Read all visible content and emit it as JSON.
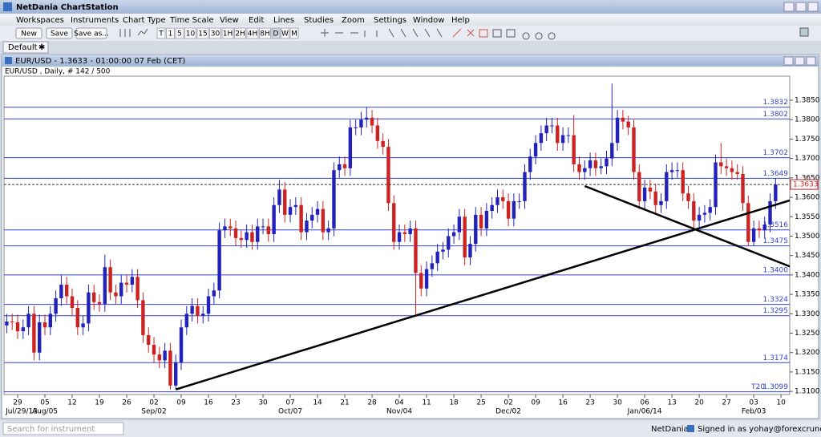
{
  "app": {
    "title": "NetDania ChartStation",
    "menu": [
      "Workspaces",
      "Instruments",
      "Chart Type",
      "Time Scale",
      "View",
      "Edit",
      "Lines",
      "Studies",
      "Zoom",
      "Settings",
      "Window",
      "Help"
    ],
    "buttons": [
      "New",
      "Save",
      "Save as..."
    ],
    "timeframes": [
      "T",
      "1",
      "5",
      "10",
      "15",
      "30",
      "1H",
      "2H",
      "4H",
      "8H",
      "D",
      "W",
      "M"
    ],
    "tab": "Default",
    "window_title": "EUR/USD - 1.3633 - 01:00:00  07 Feb (CET)",
    "info": "EUR/USD , Daily, # 142 / 500",
    "search": "Search for instrument",
    "status_brand": "NetDania",
    "status_user": "Signed in as yohay@forexcrunch.com"
  },
  "chart_data": {
    "type": "candlestick",
    "up_color": "#2222bb",
    "down_color": "#cc2222",
    "level_color": "#3344cc",
    "trend_color": "#000000",
    "xlim": [
      -0.5,
      143.6
    ],
    "ylim": [
      1.3092,
      1.3912
    ],
    "yticks": [
      {
        "value": 1.31,
        "label": "1.3100"
      },
      {
        "value": 1.315,
        "label": "1.3150"
      },
      {
        "value": 1.32,
        "label": "1.3200"
      },
      {
        "value": 1.325,
        "label": "1.3250"
      },
      {
        "value": 1.33,
        "label": "1.3300"
      },
      {
        "value": 1.335,
        "label": "1.3350"
      },
      {
        "value": 1.34,
        "label": "1.3400"
      },
      {
        "value": 1.345,
        "label": "1.3450"
      },
      {
        "value": 1.35,
        "label": "1.3500"
      },
      {
        "value": 1.355,
        "label": "1.3550"
      },
      {
        "value": 1.36,
        "label": "1.3600"
      },
      {
        "value": 1.365,
        "label": "1.3650"
      },
      {
        "value": 1.37,
        "label": "1.3700"
      },
      {
        "value": 1.375,
        "label": "1.3750"
      },
      {
        "value": 1.38,
        "label": "1.3800"
      },
      {
        "value": 1.385,
        "label": "1.3850"
      }
    ],
    "xticks": [
      {
        "value": 2,
        "label": "29"
      },
      {
        "value": 7,
        "label": "05"
      },
      {
        "value": 12,
        "label": "12"
      },
      {
        "value": 17,
        "label": "19"
      },
      {
        "value": 22,
        "label": "26"
      },
      {
        "value": 27,
        "label": "02"
      },
      {
        "value": 32,
        "label": "09"
      },
      {
        "value": 37,
        "label": "16"
      },
      {
        "value": 42,
        "label": "23"
      },
      {
        "value": 47,
        "label": "30"
      },
      {
        "value": 52,
        "label": "07"
      },
      {
        "value": 57,
        "label": "14"
      },
      {
        "value": 62,
        "label": "21"
      },
      {
        "value": 67,
        "label": "28"
      },
      {
        "value": 72,
        "label": "04"
      },
      {
        "value": 77,
        "label": "11"
      },
      {
        "value": 82,
        "label": "18"
      },
      {
        "value": 87,
        "label": "25"
      },
      {
        "value": 92,
        "label": "02"
      },
      {
        "value": 97,
        "label": "09"
      },
      {
        "value": 102,
        "label": "16"
      },
      {
        "value": 107,
        "label": "23"
      },
      {
        "value": 112,
        "label": "30"
      },
      {
        "value": 117,
        "label": "06"
      },
      {
        "value": 122,
        "label": "13"
      },
      {
        "value": 127,
        "label": "20"
      },
      {
        "value": 132,
        "label": "27"
      },
      {
        "value": 137,
        "label": "03"
      },
      {
        "value": 142,
        "label": "10"
      }
    ],
    "xticks2": [
      {
        "value": 2,
        "label": "Jul/29/13"
      },
      {
        "value": 7,
        "label": "Aug/05"
      },
      {
        "value": 27,
        "label": "Sep/02"
      },
      {
        "value": 52,
        "label": "Oct/07"
      },
      {
        "value": 72,
        "label": "Nov/04"
      },
      {
        "value": 92,
        "label": "Dec/02"
      },
      {
        "value": 117,
        "label": "Jan/06/14"
      },
      {
        "value": 137,
        "label": "Feb/03"
      }
    ],
    "levels": [
      {
        "value": 1.3832,
        "label": "1.3832"
      },
      {
        "value": 1.3802,
        "label": "1.3802"
      },
      {
        "value": 1.3702,
        "label": "1.3702"
      },
      {
        "value": 1.3649,
        "label": "1.3649"
      },
      {
        "value": 1.3516,
        "label": "1.3516"
      },
      {
        "value": 1.3475,
        "label": "1.3475"
      },
      {
        "value": 1.34,
        "label": "1.3400"
      },
      {
        "value": 1.3324,
        "label": "1.3324"
      },
      {
        "value": 1.3295,
        "label": "1.3295"
      },
      {
        "value": 1.3174,
        "label": "1.3174"
      },
      {
        "value": 1.3099,
        "label": "1.3099"
      }
    ],
    "level_note": "T20",
    "last": {
      "value": 1.3633,
      "label": "1.3633"
    },
    "trendlines": [
      {
        "from": [
          31,
          1.3105
        ],
        "to": [
          143.6,
          1.3592
        ]
      },
      {
        "from": [
          106,
          1.3629
        ],
        "to": [
          143.6,
          1.3422
        ]
      }
    ],
    "ohlc": [
      [
        1.327,
        1.33,
        1.325,
        1.328
      ],
      [
        1.328,
        1.33,
        1.3258,
        1.3278
      ],
      [
        1.3278,
        1.3298,
        1.3235,
        1.3255
      ],
      [
        1.3255,
        1.3285,
        1.3235,
        1.3265
      ],
      [
        1.3265,
        1.332,
        1.3245,
        1.33
      ],
      [
        1.33,
        1.332,
        1.318,
        1.32
      ],
      [
        1.32,
        1.3298,
        1.318,
        1.3278
      ],
      [
        1.3278,
        1.3298,
        1.3245,
        1.3265
      ],
      [
        1.3265,
        1.332,
        1.3245,
        1.33
      ],
      [
        1.33,
        1.336,
        1.328,
        1.334
      ],
      [
        1.334,
        1.34,
        1.332,
        1.3375
      ],
      [
        1.3375,
        1.3395,
        1.3325,
        1.3345
      ],
      [
        1.3345,
        1.3365,
        1.3295,
        1.3315
      ],
      [
        1.3315,
        1.3335,
        1.3245,
        1.3265
      ],
      [
        1.3265,
        1.3295,
        1.3245,
        1.3275
      ],
      [
        1.3275,
        1.3375,
        1.3255,
        1.3355
      ],
      [
        1.3355,
        1.3375,
        1.331,
        1.333
      ],
      [
        1.333,
        1.335,
        1.3305,
        1.3325
      ],
      [
        1.3325,
        1.3452,
        1.3305,
        1.342
      ],
      [
        1.342,
        1.344,
        1.3335,
        1.3355
      ],
      [
        1.3355,
        1.3375,
        1.3325,
        1.3345
      ],
      [
        1.3345,
        1.34,
        1.3325,
        1.338
      ],
      [
        1.338,
        1.34,
        1.3355,
        1.3375
      ],
      [
        1.3375,
        1.3415,
        1.3355,
        1.3395
      ],
      [
        1.3395,
        1.3415,
        1.3315,
        1.3335
      ],
      [
        1.3335,
        1.3355,
        1.3225,
        1.3245
      ],
      [
        1.3245,
        1.3265,
        1.32,
        1.322
      ],
      [
        1.322,
        1.324,
        1.3175,
        1.3195
      ],
      [
        1.3195,
        1.3215,
        1.316,
        1.318
      ],
      [
        1.318,
        1.3225,
        1.316,
        1.3205
      ],
      [
        1.3205,
        1.3225,
        1.3105,
        1.3115
      ],
      [
        1.3115,
        1.3195,
        1.3105,
        1.3175
      ],
      [
        1.3175,
        1.3285,
        1.3155,
        1.3265
      ],
      [
        1.3265,
        1.332,
        1.3245,
        1.33
      ],
      [
        1.33,
        1.334,
        1.328,
        1.332
      ],
      [
        1.332,
        1.334,
        1.3275,
        1.3295
      ],
      [
        1.3295,
        1.332,
        1.3275,
        1.33
      ],
      [
        1.33,
        1.3365,
        1.328,
        1.3345
      ],
      [
        1.3345,
        1.338,
        1.3325,
        1.336
      ],
      [
        1.336,
        1.3535,
        1.334,
        1.3515
      ],
      [
        1.3515,
        1.3545,
        1.3495,
        1.3525
      ],
      [
        1.3525,
        1.3545,
        1.35,
        1.352
      ],
      [
        1.352,
        1.354,
        1.3475,
        1.3495
      ],
      [
        1.3495,
        1.3515,
        1.347,
        1.349
      ],
      [
        1.349,
        1.353,
        1.347,
        1.351
      ],
      [
        1.351,
        1.353,
        1.3465,
        1.3485
      ],
      [
        1.3485,
        1.3545,
        1.3465,
        1.3525
      ],
      [
        1.3525,
        1.3545,
        1.3505,
        1.3525
      ],
      [
        1.3525,
        1.3545,
        1.3485,
        1.3505
      ],
      [
        1.3505,
        1.36,
        1.3485,
        1.358
      ],
      [
        1.358,
        1.3645,
        1.356,
        1.362
      ],
      [
        1.362,
        1.364,
        1.3535,
        1.3555
      ],
      [
        1.3555,
        1.3595,
        1.3535,
        1.3575
      ],
      [
        1.3575,
        1.36,
        1.3555,
        1.358
      ],
      [
        1.358,
        1.36,
        1.349,
        1.351
      ],
      [
        1.351,
        1.356,
        1.349,
        1.354
      ],
      [
        1.354,
        1.3575,
        1.352,
        1.3555
      ],
      [
        1.3555,
        1.359,
        1.3535,
        1.357
      ],
      [
        1.357,
        1.359,
        1.349,
        1.351
      ],
      [
        1.351,
        1.354,
        1.349,
        1.352
      ],
      [
        1.352,
        1.369,
        1.35,
        1.367
      ],
      [
        1.367,
        1.3705,
        1.365,
        1.3685
      ],
      [
        1.3685,
        1.3705,
        1.3655,
        1.3675
      ],
      [
        1.3675,
        1.38,
        1.3655,
        1.378
      ],
      [
        1.378,
        1.38,
        1.376,
        1.378
      ],
      [
        1.378,
        1.382,
        1.376,
        1.38
      ],
      [
        1.38,
        1.3832,
        1.378,
        1.3805
      ],
      [
        1.3805,
        1.3825,
        1.3765,
        1.3785
      ],
      [
        1.3785,
        1.3805,
        1.3725,
        1.3745
      ],
      [
        1.3745,
        1.3765,
        1.371,
        1.373
      ],
      [
        1.373,
        1.375,
        1.3565,
        1.3585
      ],
      [
        1.3585,
        1.3605,
        1.3465,
        1.3485
      ],
      [
        1.3485,
        1.353,
        1.3465,
        1.351
      ],
      [
        1.351,
        1.353,
        1.3485,
        1.3505
      ],
      [
        1.3505,
        1.354,
        1.3485,
        1.352
      ],
      [
        1.352,
        1.354,
        1.3295,
        1.3405
      ],
      [
        1.3405,
        1.3425,
        1.3345,
        1.3365
      ],
      [
        1.3365,
        1.3435,
        1.3345,
        1.3415
      ],
      [
        1.3415,
        1.345,
        1.3395,
        1.343
      ],
      [
        1.343,
        1.348,
        1.341,
        1.346
      ],
      [
        1.346,
        1.3485,
        1.344,
        1.3465
      ],
      [
        1.3465,
        1.352,
        1.3445,
        1.35
      ],
      [
        1.35,
        1.353,
        1.348,
        1.351
      ],
      [
        1.351,
        1.357,
        1.349,
        1.355
      ],
      [
        1.355,
        1.357,
        1.3425,
        1.3445
      ],
      [
        1.3445,
        1.35,
        1.3425,
        1.348
      ],
      [
        1.348,
        1.3575,
        1.346,
        1.3555
      ],
      [
        1.3555,
        1.3575,
        1.35,
        1.352
      ],
      [
        1.352,
        1.3585,
        1.35,
        1.3565
      ],
      [
        1.3565,
        1.36,
        1.3545,
        1.358
      ],
      [
        1.358,
        1.362,
        1.356,
        1.36
      ],
      [
        1.36,
        1.362,
        1.357,
        1.359
      ],
      [
        1.359,
        1.361,
        1.3525,
        1.3545
      ],
      [
        1.3545,
        1.361,
        1.3525,
        1.359
      ],
      [
        1.359,
        1.361,
        1.357,
        1.359
      ],
      [
        1.359,
        1.3685,
        1.357,
        1.3665
      ],
      [
        1.3665,
        1.3725,
        1.3645,
        1.3705
      ],
      [
        1.3705,
        1.376,
        1.3685,
        1.374
      ],
      [
        1.374,
        1.3785,
        1.372,
        1.3765
      ],
      [
        1.3765,
        1.3805,
        1.3745,
        1.3785
      ],
      [
        1.3785,
        1.3805,
        1.3765,
        1.3785
      ],
      [
        1.3785,
        1.3805,
        1.372,
        1.374
      ],
      [
        1.374,
        1.378,
        1.372,
        1.376
      ],
      [
        1.376,
        1.378,
        1.374,
        1.376
      ],
      [
        1.376,
        1.3812,
        1.3665,
        1.3685
      ],
      [
        1.3685,
        1.3705,
        1.3645,
        1.3665
      ],
      [
        1.3665,
        1.3695,
        1.3645,
        1.3675
      ],
      [
        1.3675,
        1.3715,
        1.3655,
        1.3695
      ],
      [
        1.3695,
        1.3715,
        1.3655,
        1.3675
      ],
      [
        1.3675,
        1.37,
        1.366,
        1.368
      ],
      [
        1.368,
        1.372,
        1.366,
        1.37
      ],
      [
        1.37,
        1.3893,
        1.368,
        1.374
      ],
      [
        1.374,
        1.3825,
        1.372,
        1.3805
      ],
      [
        1.3805,
        1.3825,
        1.3775,
        1.3795
      ],
      [
        1.3795,
        1.381,
        1.376,
        1.378
      ],
      [
        1.378,
        1.38,
        1.3645,
        1.3665
      ],
      [
        1.3665,
        1.3685,
        1.357,
        1.359
      ],
      [
        1.359,
        1.3645,
        1.357,
        1.3625
      ],
      [
        1.3625,
        1.3645,
        1.3595,
        1.3615
      ],
      [
        1.3615,
        1.3635,
        1.356,
        1.358
      ],
      [
        1.358,
        1.361,
        1.356,
        1.359
      ],
      [
        1.359,
        1.3685,
        1.357,
        1.3665
      ],
      [
        1.3665,
        1.369,
        1.3645,
        1.367
      ],
      [
        1.367,
        1.369,
        1.365,
        1.367
      ],
      [
        1.367,
        1.369,
        1.359,
        1.361
      ],
      [
        1.361,
        1.363,
        1.357,
        1.359
      ],
      [
        1.359,
        1.361,
        1.352,
        1.354
      ],
      [
        1.354,
        1.3575,
        1.352,
        1.3555
      ],
      [
        1.3555,
        1.358,
        1.3535,
        1.356
      ],
      [
        1.356,
        1.3595,
        1.354,
        1.3575
      ],
      [
        1.3575,
        1.371,
        1.3555,
        1.369
      ],
      [
        1.369,
        1.374,
        1.366,
        1.368
      ],
      [
        1.368,
        1.37,
        1.3655,
        1.3675
      ],
      [
        1.3675,
        1.3695,
        1.3645,
        1.3665
      ],
      [
        1.3665,
        1.3685,
        1.3645,
        1.366
      ],
      [
        1.366,
        1.368,
        1.3565,
        1.3585
      ],
      [
        1.3585,
        1.3605,
        1.3475,
        1.3485
      ],
      [
        1.3485,
        1.354,
        1.3475,
        1.352
      ],
      [
        1.352,
        1.354,
        1.3495,
        1.3515
      ],
      [
        1.3515,
        1.355,
        1.3495,
        1.353
      ],
      [
        1.353,
        1.361,
        1.351,
        1.359
      ],
      [
        1.359,
        1.365,
        1.357,
        1.3633
      ]
    ]
  }
}
